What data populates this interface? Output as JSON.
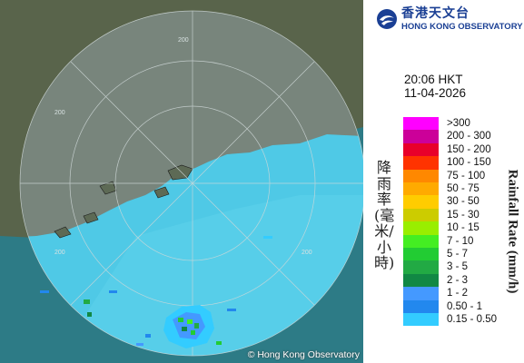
{
  "agency": {
    "name_zh": "香港天文台",
    "name_en": "HONG KONG OBSERVATORY",
    "copyright": "© Hong Kong Observatory"
  },
  "observation": {
    "time": "20:06 HKT",
    "date": "11-04-2026"
  },
  "map": {
    "range_ring_labels": [
      "200",
      "200",
      "200",
      "200"
    ]
  },
  "legend": {
    "title_zh": "降雨率(毫米/小時)",
    "title_en": "Rainfall Rate (mm/h)",
    "items": [
      {
        "label": ">300",
        "color": "#ff00ff"
      },
      {
        "label": "200 - 300",
        "color": "#cc0099"
      },
      {
        "label": "150 - 200",
        "color": "#e8002a"
      },
      {
        "label": "100 - 150",
        "color": "#ff3300"
      },
      {
        "label": "75 - 100",
        "color": "#ff8800"
      },
      {
        "label": "50 - 75",
        "color": "#ffaa00"
      },
      {
        "label": "30 - 50",
        "color": "#ffcc00"
      },
      {
        "label": "15 - 30",
        "color": "#cccc00"
      },
      {
        "label": "10 - 15",
        "color": "#99ee00"
      },
      {
        "label": "7 - 10",
        "color": "#44ee22"
      },
      {
        "label": "5 - 7",
        "color": "#22cc33"
      },
      {
        "label": "3 - 5",
        "color": "#22aa44"
      },
      {
        "label": "2 - 3",
        "color": "#118844"
      },
      {
        "label": "1 - 2",
        "color": "#4499ff"
      },
      {
        "label": "0.50 - 1",
        "color": "#2288ee"
      },
      {
        "label": "0.15 - 0.50",
        "color": "#33ccff"
      }
    ]
  }
}
